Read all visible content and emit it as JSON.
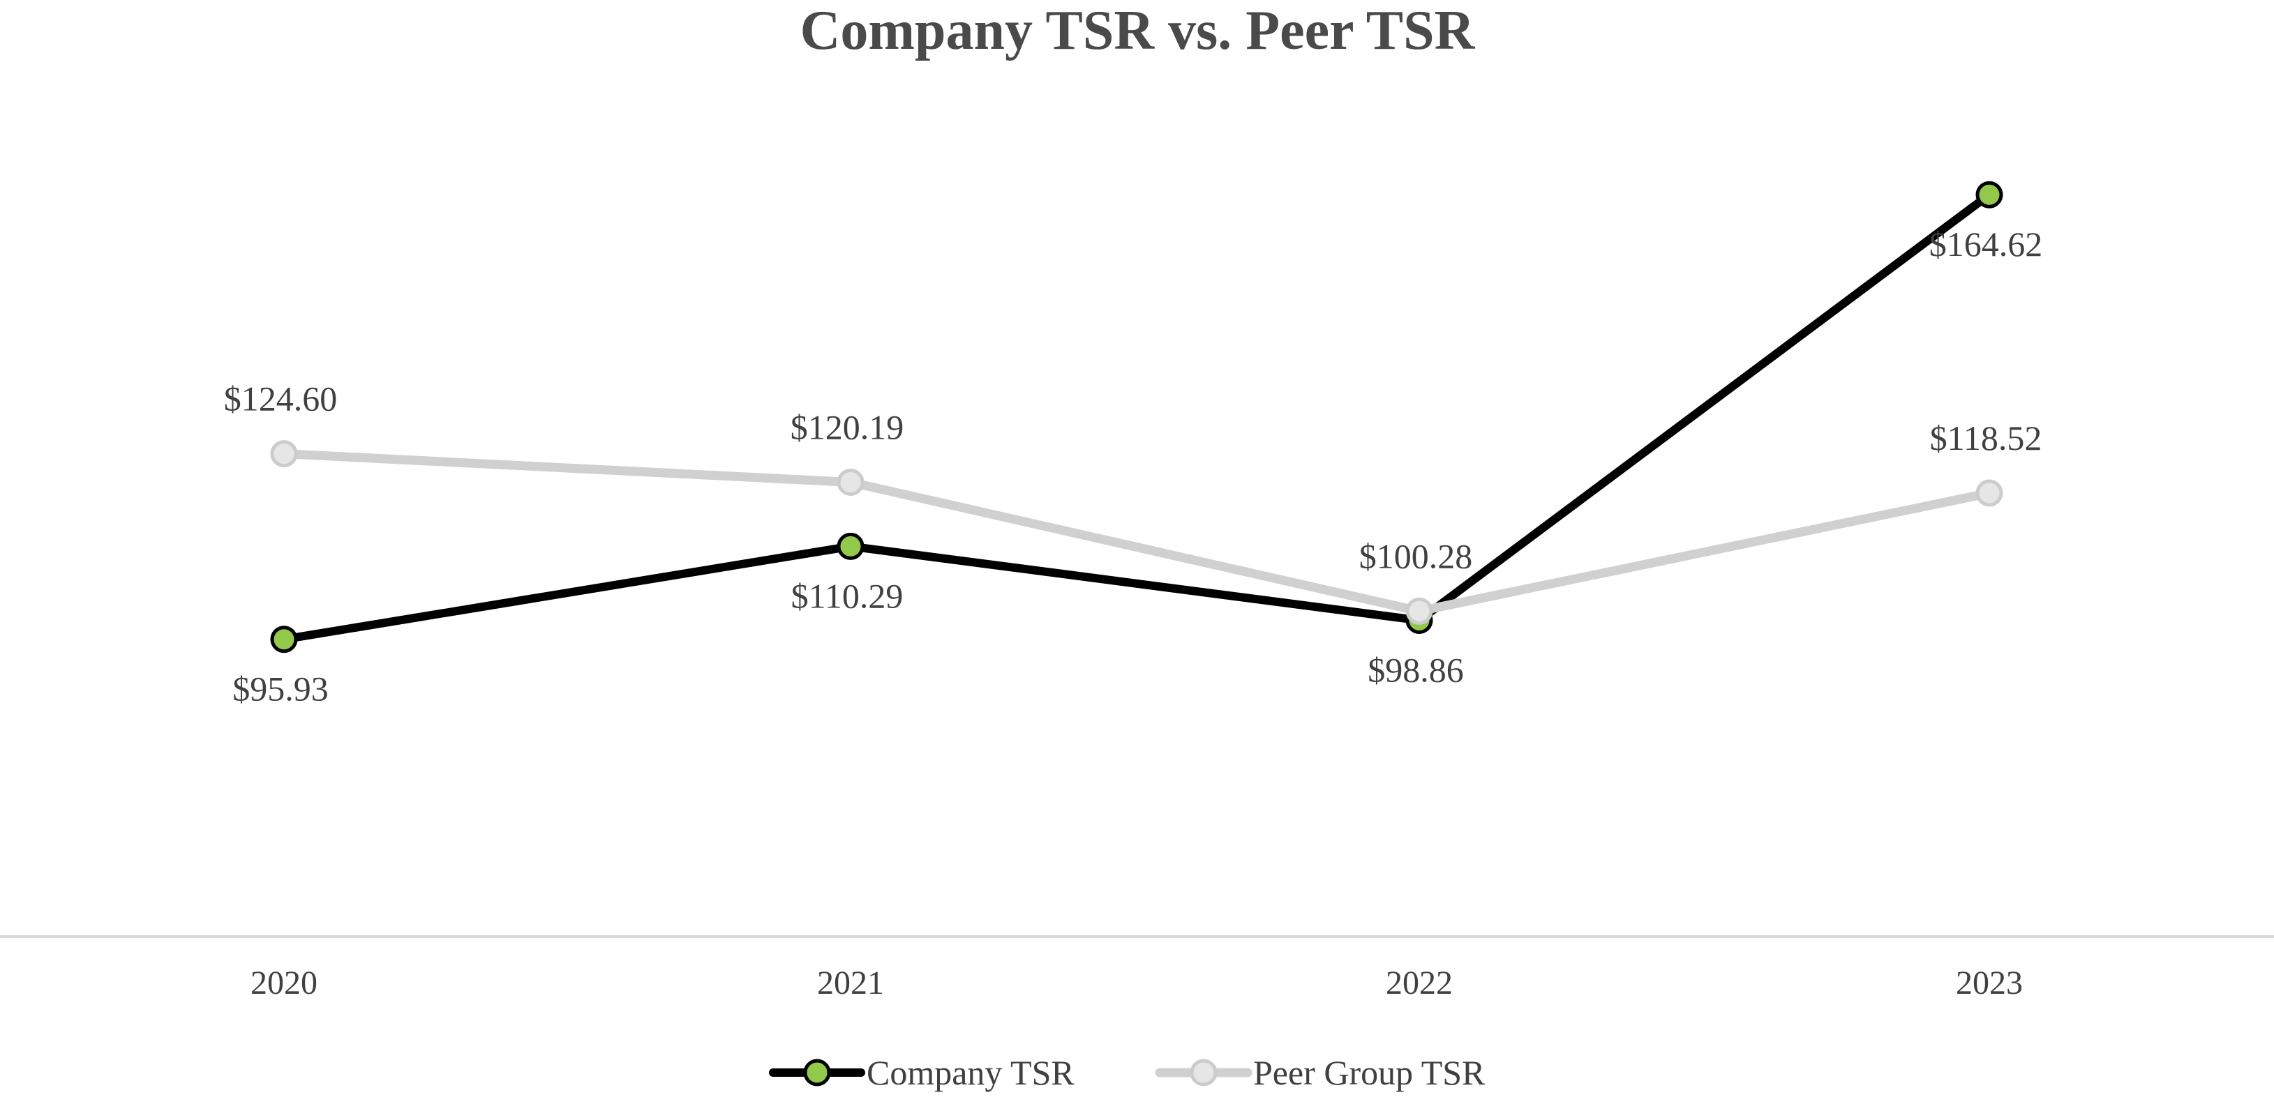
{
  "chart_data": {
    "type": "line",
    "title": "Company TSR vs. Peer TSR",
    "xlabel": "",
    "ylabel": "",
    "categories": [
      "2020",
      "2021",
      "2022",
      "2023"
    ],
    "ylim": [
      50,
      185
    ],
    "grid": false,
    "legend_position": "bottom",
    "series": [
      {
        "name": "Company TSR",
        "values": [
          95.93,
          110.29,
          98.86,
          164.62
        ],
        "labels": [
          "$95.93",
          "$110.29",
          "$98.86",
          "$164.62"
        ],
        "label_position": "below",
        "line_color": "#000000",
        "marker_fill": "#92c94a",
        "marker_stroke": "#000000"
      },
      {
        "name": "Peer Group TSR",
        "values": [
          124.6,
          120.19,
          100.28,
          118.52
        ],
        "labels": [
          "$124.60",
          "$120.19",
          "$100.28",
          "$118.52"
        ],
        "label_position": "above",
        "line_color": "#d0d0d0",
        "marker_fill": "#e6e6e6",
        "marker_stroke": "#cccccc"
      }
    ]
  }
}
